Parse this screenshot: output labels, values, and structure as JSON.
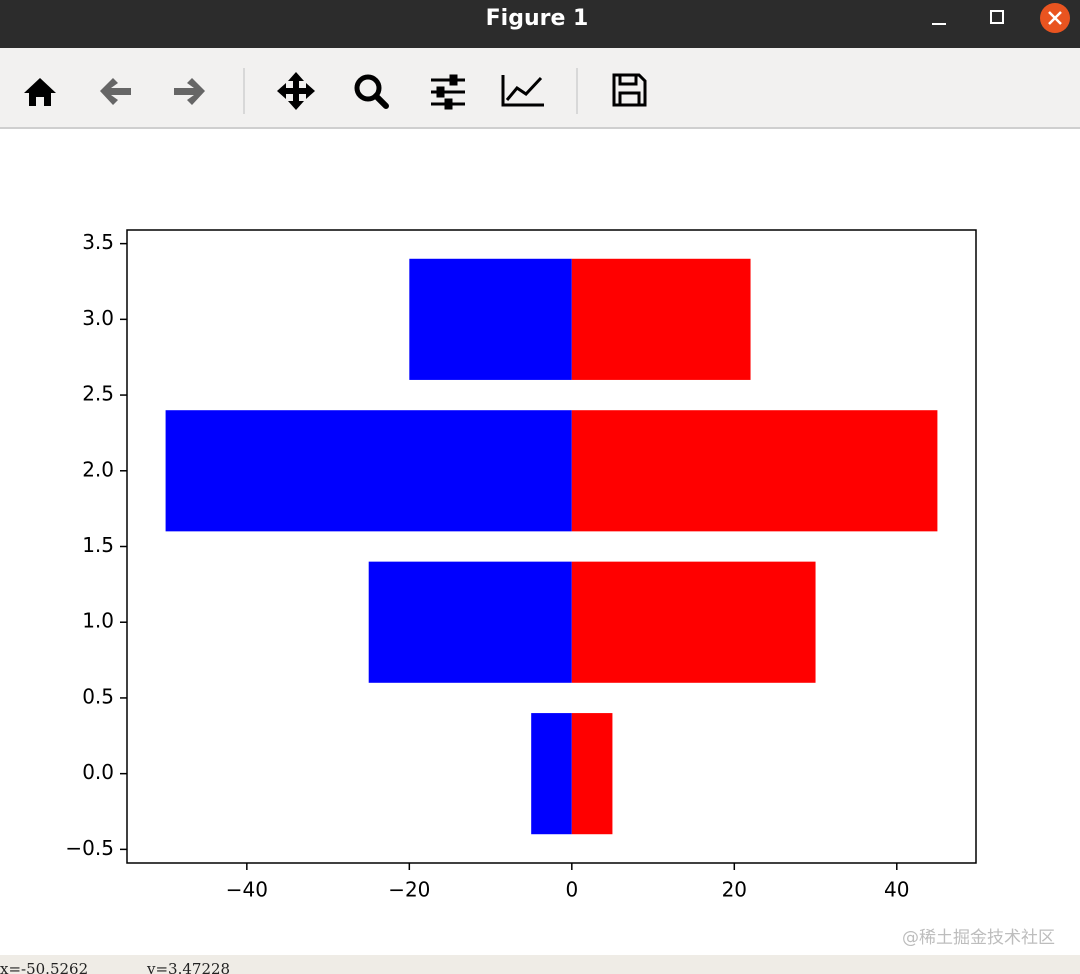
{
  "window": {
    "title": "Figure 1"
  },
  "chart_data": {
    "type": "barh",
    "y": [
      0,
      1,
      2,
      3
    ],
    "series": [
      {
        "color": "#0000ff",
        "values": [
          -5,
          -25,
          -50,
          -20
        ]
      },
      {
        "color": "#ff0000",
        "values": [
          5,
          30,
          45,
          22
        ]
      }
    ],
    "xlim": [
      -54.75,
      49.75
    ],
    "xticks": [
      {
        "value": -40,
        "label": "−40"
      },
      {
        "value": -20,
        "label": "−20"
      },
      0,
      20,
      40
    ],
    "ylim": [
      -0.59,
      3.59
    ],
    "yticks": [
      {
        "value": -0.5,
        "label": "−0.5"
      },
      {
        "value": 0,
        "label": "0.0"
      },
      {
        "value": 0.5,
        "label": "0.5"
      },
      {
        "value": 1,
        "label": "1.0"
      },
      {
        "value": 1.5,
        "label": "1.5"
      },
      {
        "value": 2,
        "label": "2.0"
      },
      {
        "value": 2.5,
        "label": "2.5"
      },
      {
        "value": 3,
        "label": "3.0"
      },
      {
        "value": 3.5,
        "label": "3.5"
      }
    ]
  },
  "status": {
    "x": "x=-50.5262",
    "y": "y=3.47228"
  },
  "watermark": "@稀土掘金技术社区"
}
